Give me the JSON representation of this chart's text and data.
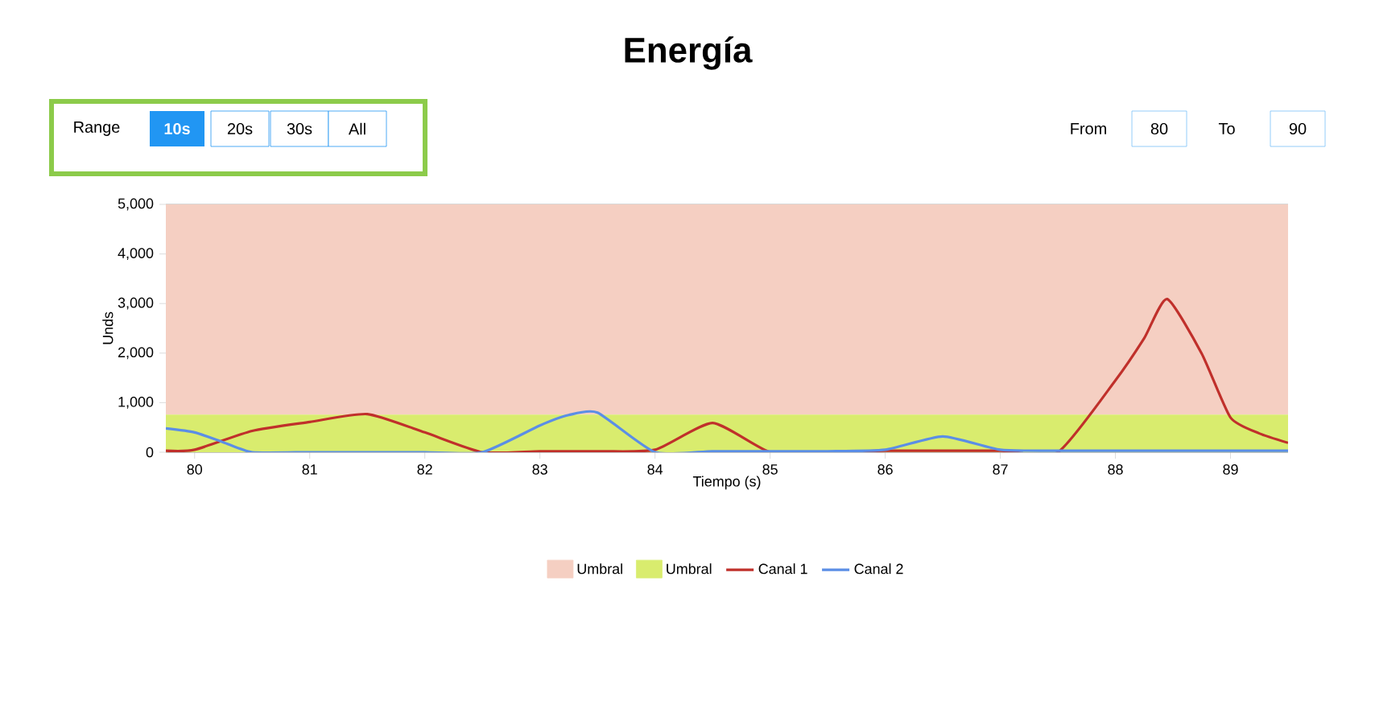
{
  "chart_data": {
    "type": "line",
    "title": "Energía",
    "xlabel": "Tiempo (s)",
    "ylabel": "Unds",
    "annotations": [
      "Range",
      "10s",
      "20s",
      "30s",
      "All",
      "From",
      "80",
      "To",
      "90"
    ],
    "xlim": [
      79.75,
      89.5
    ],
    "xticks": [
      80,
      81,
      82,
      83,
      84,
      85,
      86,
      87,
      88,
      89
    ],
    "ylim": [
      0,
      5000
    ],
    "yticks": [
      {
        "value": 0,
        "label": "0"
      },
      {
        "value": 1000,
        "label": "1,000"
      },
      {
        "value": 2000,
        "label": "2,000"
      },
      {
        "value": 3000,
        "label": "3,000"
      },
      {
        "value": 4000,
        "label": "4,000"
      },
      {
        "value": 5000,
        "label": "5,000"
      }
    ],
    "grid": "y",
    "legend": "bottom",
    "marker": "none",
    "bands": [
      {
        "axis": "y",
        "from": 760,
        "to": 5000,
        "label": "Umbral",
        "color": "#f5cfc2"
      },
      {
        "axis": "y",
        "from": 0,
        "to": 760,
        "label": "Umbral",
        "color": "#d9ec6e"
      }
    ],
    "series": [
      {
        "name": "Canal 1",
        "color": "#c0302b",
        "x": [
          79.75,
          80,
          80.5,
          81,
          81.5,
          82,
          82.5,
          83,
          83.5,
          84,
          84.5,
          85,
          85.5,
          86,
          86.5,
          87,
          87.5,
          88,
          88.25,
          88.45,
          88.75,
          89,
          89.25,
          89.5
        ],
        "values": [
          30,
          50,
          430,
          610,
          770,
          400,
          0,
          20,
          20,
          50,
          590,
          0,
          0,
          30,
          30,
          30,
          0,
          1450,
          2300,
          3090,
          1990,
          700,
          380,
          190
        ]
      },
      {
        "name": "Canal 2",
        "color": "#5b8ee6",
        "x": [
          79.75,
          80,
          80.25,
          80.5,
          81,
          81.5,
          82,
          82.5,
          83,
          83.25,
          83.5,
          84,
          84.5,
          85,
          85.5,
          86,
          86.5,
          87,
          87.5,
          88,
          88.5,
          89,
          89.5
        ],
        "values": [
          480,
          400,
          200,
          0,
          0,
          0,
          0,
          0,
          540,
          750,
          800,
          0,
          20,
          20,
          20,
          50,
          320,
          50,
          30,
          30,
          30,
          30,
          30
        ]
      }
    ]
  }
}
